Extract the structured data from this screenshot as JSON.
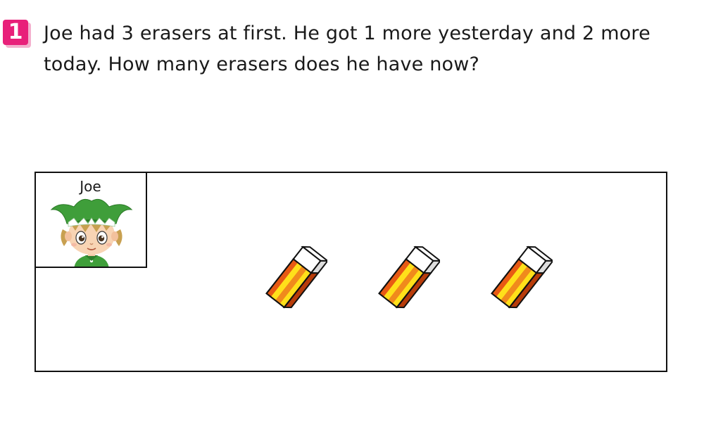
{
  "question": {
    "number": "1",
    "text": "Joe had 3 erasers at first. He got 1 more yesterday and 2 more today. How many erasers does he have now?"
  },
  "scene": {
    "character": {
      "name": "Joe"
    },
    "eraser_count": 3
  },
  "colors": {
    "badge": "#e8207a",
    "hat_green": "#3f9e3a",
    "eraser_orange": "#f08a1c",
    "eraser_yellow": "#ffe01a",
    "eraser_red": "#e85a14"
  }
}
